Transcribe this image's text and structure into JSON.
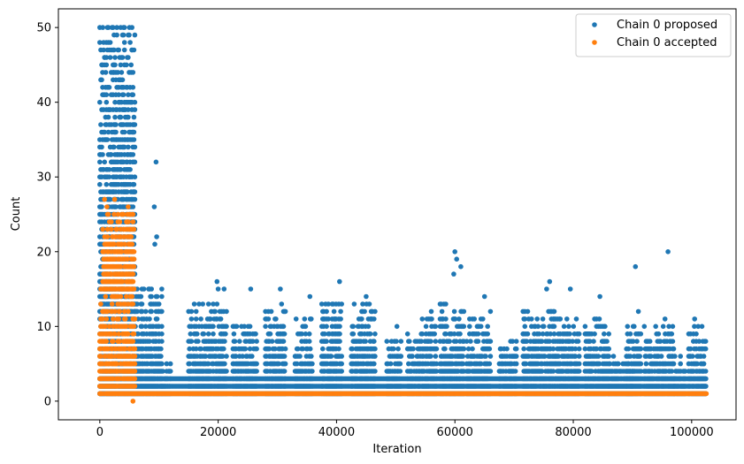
{
  "chart_data": {
    "type": "scatter",
    "xlabel": "Iteration",
    "ylabel": "Count",
    "xlim": [
      -7000,
      107500
    ],
    "ylim": [
      -2.5,
      52.5
    ],
    "xticks": [
      0,
      20000,
      40000,
      60000,
      80000,
      100000
    ],
    "yticks": [
      0,
      10,
      20,
      30,
      40,
      50
    ],
    "legend_position": "top-right",
    "grid": false,
    "series": [
      {
        "name": "Chain 0 proposed",
        "color": "#1f77b4",
        "marker": "circle",
        "band": {
          "x": [
            0,
            102500
          ],
          "y": [
            1,
            3
          ]
        },
        "clusters": [
          {
            "x": [
              0,
              6000
            ],
            "y": [
              1,
              50
            ]
          },
          {
            "x": [
              6000,
              10500
            ],
            "y": [
              1,
              15
            ]
          },
          {
            "x": [
              10500,
              12000
            ],
            "y": [
              1,
              5
            ]
          },
          {
            "x": [
              15000,
              21500
            ],
            "y": [
              1,
              13
            ]
          },
          {
            "x": [
              22500,
              26500
            ],
            "y": [
              1,
              10
            ]
          },
          {
            "x": [
              28000,
              31500
            ],
            "y": [
              1,
              13
            ]
          },
          {
            "x": [
              33000,
              36000
            ],
            "y": [
              1,
              11
            ]
          },
          {
            "x": [
              37500,
              41000
            ],
            "y": [
              1,
              13
            ]
          },
          {
            "x": [
              42500,
              46500
            ],
            "y": [
              1,
              13
            ]
          },
          {
            "x": [
              48500,
              51000
            ],
            "y": [
              1,
              8
            ]
          },
          {
            "x": [
              52000,
              54000
            ],
            "y": [
              1,
              9
            ]
          },
          {
            "x": [
              54000,
              57000
            ],
            "y": [
              1,
              11
            ]
          },
          {
            "x": [
              57500,
              61500
            ],
            "y": [
              1,
              13
            ]
          },
          {
            "x": [
              62000,
              66000
            ],
            "y": [
              1,
              11
            ]
          },
          {
            "x": [
              67500,
              70500
            ],
            "y": [
              1,
              8
            ]
          },
          {
            "x": [
              71500,
              77000
            ],
            "y": [
              1,
              12
            ]
          },
          {
            "x": [
              77000,
              81000
            ],
            "y": [
              1,
              11
            ]
          },
          {
            "x": [
              82000,
              86000
            ],
            "y": [
              1,
              11
            ]
          },
          {
            "x": [
              86000,
              90000
            ],
            "y": [
              1,
              6
            ]
          },
          {
            "x": [
              89000,
              91500
            ],
            "y": [
              1,
              10
            ]
          },
          {
            "x": [
              92000,
              97000
            ],
            "y": [
              1,
              10
            ]
          },
          {
            "x": [
              97000,
              99000
            ],
            "y": [
              1,
              6
            ]
          },
          {
            "x": [
              99500,
              102500
            ],
            "y": [
              1,
              10
            ]
          }
        ],
        "points": [
          {
            "x": 500,
            "y": 50
          },
          {
            "x": 5000,
            "y": 50
          },
          {
            "x": 5400,
            "y": 47
          },
          {
            "x": 800,
            "y": 46
          },
          {
            "x": 4500,
            "y": 45
          },
          {
            "x": 1000,
            "y": 44
          },
          {
            "x": 9500,
            "y": 32
          },
          {
            "x": 9200,
            "y": 26
          },
          {
            "x": 9600,
            "y": 22
          },
          {
            "x": 9300,
            "y": 21
          },
          {
            "x": 19800,
            "y": 16
          },
          {
            "x": 20000,
            "y": 15
          },
          {
            "x": 21000,
            "y": 15
          },
          {
            "x": 25500,
            "y": 15
          },
          {
            "x": 30500,
            "y": 15
          },
          {
            "x": 35500,
            "y": 14
          },
          {
            "x": 40500,
            "y": 16
          },
          {
            "x": 45000,
            "y": 14
          },
          {
            "x": 50200,
            "y": 10
          },
          {
            "x": 56000,
            "y": 12
          },
          {
            "x": 60000,
            "y": 20
          },
          {
            "x": 60300,
            "y": 19
          },
          {
            "x": 59800,
            "y": 17
          },
          {
            "x": 61000,
            "y": 18
          },
          {
            "x": 65000,
            "y": 14
          },
          {
            "x": 66000,
            "y": 12
          },
          {
            "x": 75500,
            "y": 15
          },
          {
            "x": 76000,
            "y": 16
          },
          {
            "x": 79500,
            "y": 15
          },
          {
            "x": 84500,
            "y": 14
          },
          {
            "x": 90500,
            "y": 18
          },
          {
            "x": 91000,
            "y": 12
          },
          {
            "x": 96000,
            "y": 20
          },
          {
            "x": 95500,
            "y": 11
          },
          {
            "x": 100500,
            "y": 11
          },
          {
            "x": 102000,
            "y": 5
          }
        ]
      },
      {
        "name": "Chain 0 accepted",
        "color": "#ff7f0e",
        "marker": "circle",
        "band": {
          "x": [
            6000,
            102500
          ],
          "y": [
            1,
            1
          ]
        },
        "clusters": [
          {
            "x": [
              0,
              6000
            ],
            "y": [
              1,
              15
            ]
          },
          {
            "x": [
              500,
              5800
            ],
            "y": [
              15,
              25
            ]
          }
        ],
        "points": [
          {
            "x": 800,
            "y": 27
          },
          {
            "x": 1200,
            "y": 26
          },
          {
            "x": 2500,
            "y": 27
          },
          {
            "x": 4000,
            "y": 25
          },
          {
            "x": 4800,
            "y": 26
          },
          {
            "x": 5500,
            "y": 25
          },
          {
            "x": 5600,
            "y": 0
          }
        ]
      }
    ]
  }
}
